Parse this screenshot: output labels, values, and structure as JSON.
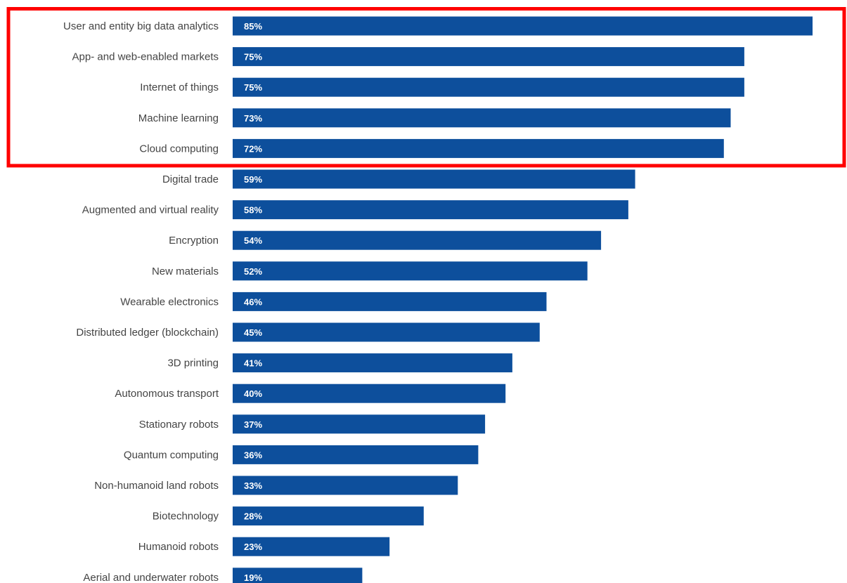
{
  "chart_data": {
    "type": "bar",
    "orientation": "horizontal",
    "categories": [
      "User and entity big data analytics",
      "App- and web-enabled markets",
      "Internet of things",
      "Machine learning",
      "Cloud computing",
      "Digital trade",
      "Augmented and virtual reality",
      "Encryption",
      "New materials",
      "Wearable electronics",
      "Distributed ledger (blockchain)",
      "3D printing",
      "Autonomous transport",
      "Stationary robots",
      "Quantum computing",
      "Non-humanoid land robots",
      "Biotechnology",
      "Humanoid robots",
      "Aerial and underwater robots"
    ],
    "values": [
      85,
      75,
      75,
      73,
      72,
      59,
      58,
      54,
      52,
      46,
      45,
      41,
      40,
      37,
      36,
      33,
      28,
      23,
      19
    ],
    "value_labels": [
      "85%",
      "75%",
      "75%",
      "73%",
      "72%",
      "59%",
      "58%",
      "54%",
      "52%",
      "46%",
      "45%",
      "41%",
      "40%",
      "37%",
      "36%",
      "33%",
      "28%",
      "23%",
      "19%"
    ],
    "bar_color": "#0d4f9c",
    "value_label_color": "#ffffff",
    "highlight": {
      "color": "#ff0000",
      "categories": [
        "User and entity big data analytics",
        "App- and web-enabled markets",
        "Internet of things",
        "Machine learning",
        "Cloud computing"
      ]
    },
    "title": "",
    "xlabel": "",
    "ylabel": "",
    "xlim": [
      0,
      85
    ]
  }
}
